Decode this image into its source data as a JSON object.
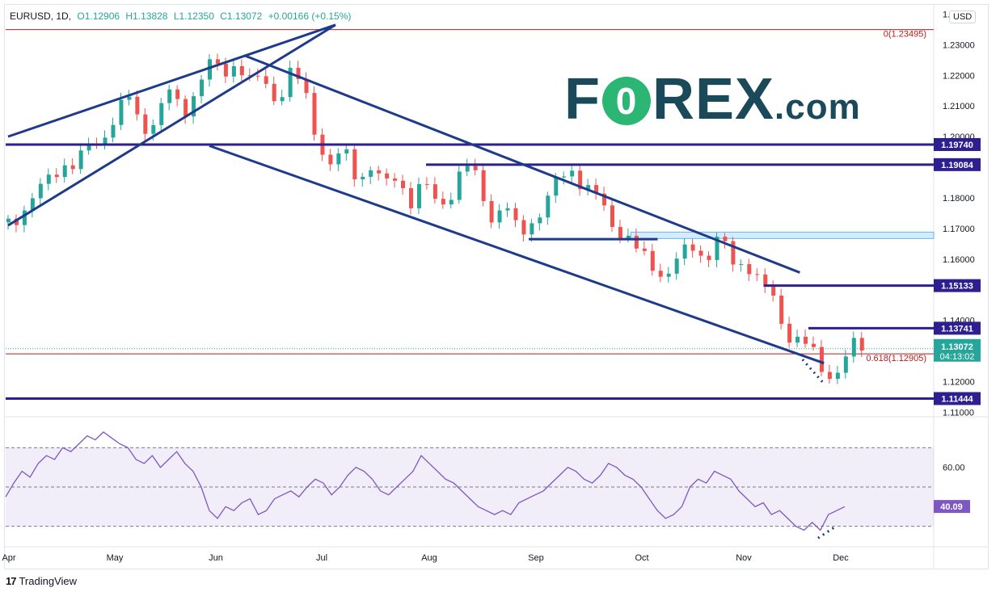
{
  "header": {
    "symbol": "EURUSD, 1D,",
    "open": "O1.12906",
    "high": "H1.13828",
    "low": "L1.12350",
    "close": "C1.13072",
    "change": "+0.00166 (+0.15%)"
  },
  "currency_label": "USD",
  "watermark": {
    "brand_start": "F",
    "brand_o": "0",
    "brand_end": "REX",
    "brand_suffix": ".com"
  },
  "footer": {
    "logo_mark": "17",
    "logo_text": "TradingView"
  },
  "colors": {
    "up": "#26a69a",
    "down": "#ef5350",
    "trendline": "#1e3a8a",
    "level": "#2d1f8f",
    "rsi": "#7e57c2",
    "fib": "#b71c1c"
  },
  "chart_data": [
    {
      "type": "candlestick",
      "x_ticks": [
        "Apr",
        "May",
        "Jun",
        "Jul",
        "Aug",
        "Sep",
        "Oct",
        "Nov",
        "Dec"
      ],
      "y_ticks": [
        "1.24000",
        "1.23000",
        "1.22000",
        "1.21000",
        "1.20000",
        "1.18000",
        "1.17000",
        "1.16000",
        "1.14000",
        "1.12000",
        "1.11000"
      ],
      "ylim": [
        1.1085,
        1.2425
      ],
      "price_levels": [
        {
          "label": "1.19740",
          "value": 1.1974
        },
        {
          "label": "1.19084",
          "value": 1.19084
        },
        {
          "label": "1.15133",
          "value": 1.15133
        },
        {
          "label": "1.13741",
          "value": 1.13741
        },
        {
          "label": "1.11444",
          "value": 1.11444
        }
      ],
      "last_price": {
        "label": "1.13072",
        "countdown": "04:13:02",
        "value": 1.13072
      },
      "fibonacci": [
        {
          "label": "0(1.23495)",
          "value": 1.23495
        },
        {
          "label": "0.618(1.12905)",
          "value": 1.12905
        }
      ],
      "close_path": [
        [
          0,
          1.172
        ],
        [
          5,
          1.176
        ],
        [
          10,
          1.18
        ],
        [
          15,
          1.186
        ],
        [
          20,
          1.192
        ],
        [
          25,
          1.19
        ],
        [
          30,
          1.196
        ],
        [
          35,
          1.2
        ],
        [
          40,
          1.207
        ],
        [
          45,
          1.212
        ],
        [
          50,
          1.203
        ],
        [
          55,
          1.206
        ],
        [
          60,
          1.214
        ],
        [
          65,
          1.208
        ],
        [
          70,
          1.216
        ],
        [
          75,
          1.223
        ],
        [
          80,
          1.221
        ],
        [
          85,
          1.225
        ],
        [
          90,
          1.217
        ],
        [
          95,
          1.219
        ],
        [
          100,
          1.212
        ],
        [
          105,
          1.22
        ],
        [
          110,
          1.216
        ],
        [
          115,
          1.2
        ],
        [
          120,
          1.19
        ],
        [
          125,
          1.195
        ],
        [
          130,
          1.187
        ],
        [
          135,
          1.19
        ],
        [
          140,
          1.183
        ],
        [
          145,
          1.188
        ],
        [
          150,
          1.179
        ],
        [
          155,
          1.184
        ],
        [
          160,
          1.178
        ],
        [
          165,
          1.182
        ],
        [
          170,
          1.19
        ],
        [
          175,
          1.186
        ],
        [
          180,
          1.174
        ],
        [
          185,
          1.177
        ],
        [
          190,
          1.168
        ],
        [
          195,
          1.173
        ],
        [
          200,
          1.177
        ],
        [
          205,
          1.186
        ],
        [
          210,
          1.19
        ],
        [
          215,
          1.183
        ],
        [
          220,
          1.179
        ],
        [
          225,
          1.172
        ],
        [
          230,
          1.168
        ],
        [
          235,
          1.161
        ],
        [
          240,
          1.158
        ],
        [
          245,
          1.155
        ],
        [
          250,
          1.16
        ],
        [
          255,
          1.164
        ],
        [
          260,
          1.161
        ],
        [
          265,
          1.167
        ],
        [
          270,
          1.158
        ],
        [
          275,
          1.16
        ],
        [
          280,
          1.152
        ],
        [
          285,
          1.146
        ],
        [
          290,
          1.136
        ],
        [
          295,
          1.134
        ],
        [
          300,
          1.128
        ],
        [
          305,
          1.122
        ],
        [
          310,
          1.125
        ],
        [
          315,
          1.131
        ],
        [
          318,
          1.1307
        ]
      ],
      "trend_lines": [
        {
          "from": [
            0,
            1.2
          ],
          "to": [
            122,
            1.2365
          ]
        },
        {
          "from": [
            0,
            1.171
          ],
          "to": [
            122,
            1.2365
          ]
        },
        {
          "from": [
            88,
            1.2265
          ],
          "to": [
            295,
            1.1556
          ]
        },
        {
          "from": [
            75,
            1.197
          ],
          "to": [
            304,
            1.126
          ]
        },
        {
          "from": [
            194,
            1.1665
          ],
          "to": [
            242,
            1.1665
          ]
        }
      ],
      "resistance_zone": [
        1.1667,
        1.1688
      ]
    },
    {
      "type": "line",
      "name": "RSI",
      "y_ticks": [
        "60.00"
      ],
      "last_value": {
        "label": "40.09",
        "value": 40.09
      },
      "ylim": [
        20,
        80
      ],
      "bands": [
        30,
        50,
        70
      ],
      "values": [
        45,
        52,
        58,
        55,
        62,
        66,
        64,
        70,
        68,
        72,
        76,
        74,
        78,
        75,
        72,
        70,
        64,
        62,
        66,
        60,
        64,
        68,
        62,
        58,
        50,
        38,
        34,
        40,
        38,
        42,
        44,
        36,
        38,
        44,
        46,
        48,
        45,
        50,
        54,
        52,
        46,
        50,
        56,
        60,
        58,
        54,
        48,
        46,
        50,
        54,
        58,
        66,
        62,
        58,
        54,
        52,
        48,
        44,
        40,
        38,
        36,
        38,
        36,
        42,
        44,
        46,
        48,
        52,
        56,
        60,
        58,
        54,
        52,
        56,
        62,
        60,
        56,
        54,
        50,
        44,
        38,
        34,
        36,
        40,
        50,
        54,
        52,
        58,
        56,
        54,
        48,
        44,
        40,
        42,
        36,
        38,
        34,
        30,
        28,
        32,
        28,
        36,
        38,
        40
      ]
    }
  ]
}
